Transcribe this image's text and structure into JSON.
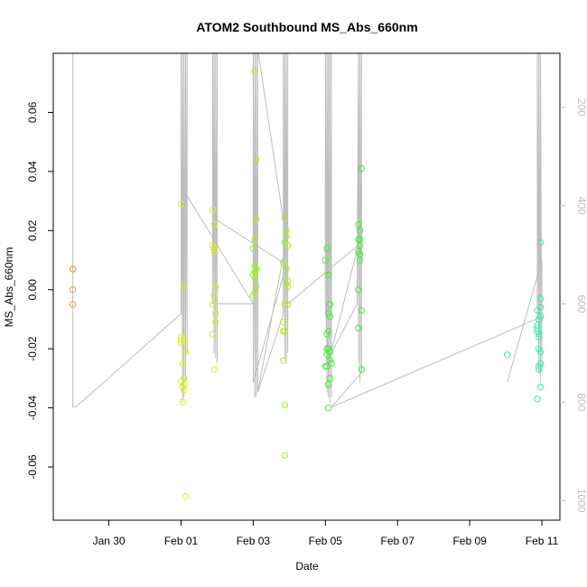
{
  "chart_data": {
    "type": "scatter",
    "title": "ATOM2 Southbound MS_Abs_660nm",
    "xlabel": "Date",
    "ylabel": "MS_Abs_660nm",
    "xlim": [
      "2017-01-28 11:00",
      "2017-02-11 12:00"
    ],
    "ylim": [
      -0.078,
      0.08
    ],
    "x_ticks": [
      "Jan 30",
      "Feb 01",
      "Feb 03",
      "Feb 05",
      "Feb 07",
      "Feb 09",
      "Feb 11"
    ],
    "x_tick_dates": [
      "2017-01-30",
      "2017-02-01",
      "2017-02-03",
      "2017-02-05",
      "2017-02-07",
      "2017-02-09",
      "2017-02-11"
    ],
    "y_ticks": [
      -0.06,
      -0.04,
      -0.02,
      0.0,
      0.02,
      0.04,
      0.06
    ],
    "y_tick_labels": [
      "-0.06",
      "-0.04",
      "-0.02",
      "0.00",
      "0.02",
      "0.04",
      "0.06"
    ],
    "right_axis": {
      "label": "",
      "ticks": [
        200,
        400,
        600,
        800,
        1000
      ],
      "tick_labels": [
        "200",
        "400",
        "600",
        "800",
        "1000"
      ],
      "range_top_to_bottom": [
        90,
        1040
      ],
      "color": "#bdbdbd"
    },
    "grid": false,
    "legend": "none",
    "series": [
      {
        "color": "#e8a33a",
        "points": [
          [
            "2017-01-29 00:00",
            0.007
          ],
          [
            "2017-01-29 00:00",
            0.007
          ],
          [
            "2017-01-29 00:00",
            0.0
          ],
          [
            "2017-01-29 00:00",
            -0.005
          ]
        ]
      },
      {
        "color": "#ddee22",
        "points": [
          [
            "2017-02-01 00:00",
            0.029
          ],
          [
            "2017-02-01 00:00",
            -0.016
          ],
          [
            "2017-02-01 00:00",
            -0.017
          ],
          [
            "2017-02-01 00:00",
            -0.018
          ],
          [
            "2017-02-01 01:00",
            -0.025
          ],
          [
            "2017-02-01 00:00",
            -0.031
          ],
          [
            "2017-02-01 01:00",
            -0.033
          ],
          [
            "2017-02-01 02:00",
            -0.03
          ],
          [
            "2017-02-01 02:00",
            -0.034
          ],
          [
            "2017-02-01 02:00",
            -0.032
          ],
          [
            "2017-02-01 01:00",
            -0.038
          ],
          [
            "2017-02-01 03:00",
            -0.07
          ],
          [
            "2017-02-01 02:00",
            0.001
          ],
          [
            "2017-02-01 02:00",
            -0.017
          ],
          [
            "2017-02-01 03:00",
            -0.021
          ],
          [
            "2017-02-01 21:00",
            0.027
          ],
          [
            "2017-02-01 22:00",
            0.022
          ],
          [
            "2017-02-01 21:00",
            0.015
          ],
          [
            "2017-02-01 22:00",
            0.014
          ],
          [
            "2017-02-01 22:00",
            0.013
          ],
          [
            "2017-02-01 23:00",
            0.001
          ],
          [
            "2017-02-01 22:00",
            -0.002
          ],
          [
            "2017-02-01 21:00",
            -0.005
          ],
          [
            "2017-02-01 23:00",
            -0.008
          ],
          [
            "2017-02-01 23:00",
            -0.011
          ],
          [
            "2017-02-01 21:00",
            -0.015
          ],
          [
            "2017-02-01 22:00",
            -0.027
          ]
        ]
      },
      {
        "color": "#a8ee22",
        "points": [
          [
            "2017-02-03 01:00",
            0.074
          ],
          [
            "2017-02-03 02:00",
            0.044
          ],
          [
            "2017-02-03 02:00",
            0.024
          ],
          [
            "2017-02-03 01:00",
            0.017
          ],
          [
            "2017-02-03 00:00",
            0.014
          ],
          [
            "2017-02-03 01:00",
            0.008
          ],
          [
            "2017-02-03 02:00",
            0.007
          ],
          [
            "2017-02-03 01:00",
            0.006
          ],
          [
            "2017-02-03 00:00",
            0.005
          ],
          [
            "2017-02-03 01:00",
            0.004
          ],
          [
            "2017-02-03 02:00",
            0.001
          ],
          [
            "2017-02-03 01:00",
            -0.001
          ],
          [
            "2017-02-03 00:00",
            -0.002
          ],
          [
            "2017-02-03 02:00",
            0.007
          ],
          [
            "2017-02-03 21:00",
            0.024
          ],
          [
            "2017-02-03 22:00",
            0.02
          ],
          [
            "2017-02-03 22:00",
            0.018
          ],
          [
            "2017-02-03 21:00",
            0.016
          ],
          [
            "2017-02-03 23:00",
            0.015
          ],
          [
            "2017-02-03 20:00",
            0.009
          ],
          [
            "2017-02-03 22:00",
            0.007
          ],
          [
            "2017-02-03 23:00",
            0.003
          ],
          [
            "2017-02-03 22:00",
            0.002
          ],
          [
            "2017-02-03 23:00",
            0.001
          ],
          [
            "2017-02-03 21:00",
            -0.005
          ],
          [
            "2017-02-03 23:00",
            -0.005
          ],
          [
            "2017-02-03 20:00",
            -0.011
          ],
          [
            "2017-02-03 20:00",
            -0.014
          ],
          [
            "2017-02-03 21:00",
            -0.014
          ],
          [
            "2017-02-03 20:00",
            -0.024
          ],
          [
            "2017-02-03 21:00",
            -0.039
          ],
          [
            "2017-02-03 21:00",
            -0.056
          ]
        ]
      },
      {
        "color": "#44ee33",
        "points": [
          [
            "2017-02-05 01:00",
            0.014
          ],
          [
            "2017-02-05 00:00",
            0.01
          ],
          [
            "2017-02-05 02:00",
            0.005
          ],
          [
            "2017-02-05 03:00",
            -0.005
          ],
          [
            "2017-02-05 02:00",
            -0.008
          ],
          [
            "2017-02-05 03:00",
            -0.009
          ],
          [
            "2017-02-05 02:00",
            -0.014
          ],
          [
            "2017-02-05 01:00",
            -0.015
          ],
          [
            "2017-02-05 01:00",
            -0.02
          ],
          [
            "2017-02-05 02:00",
            -0.02
          ],
          [
            "2017-02-05 03:00",
            -0.021
          ],
          [
            "2017-02-05 01:00",
            -0.022
          ],
          [
            "2017-02-05 03:00",
            -0.024
          ],
          [
            "2017-02-05 04:00",
            -0.025
          ],
          [
            "2017-02-05 00:00",
            -0.026
          ],
          [
            "2017-02-05 01:00",
            -0.026
          ],
          [
            "2017-02-05 03:00",
            -0.03
          ],
          [
            "2017-02-05 02:00",
            -0.032
          ],
          [
            "2017-02-05 02:00",
            -0.04
          ],
          [
            "2017-02-05 22:00",
            0.022
          ],
          [
            "2017-02-05 23:00",
            0.02
          ],
          [
            "2017-02-05 22:00",
            0.017
          ],
          [
            "2017-02-05 23:00",
            0.017
          ],
          [
            "2017-02-05 23:00",
            0.015
          ],
          [
            "2017-02-05 22:00",
            0.013
          ],
          [
            "2017-02-05 23:00",
            0.012
          ],
          [
            "2017-02-05 23:00",
            0.01
          ],
          [
            "2017-02-05 22:00",
            0.0
          ],
          [
            "2017-02-06 00:00",
            -0.007
          ],
          [
            "2017-02-05 22:00",
            -0.013
          ],
          [
            "2017-02-06 00:00",
            -0.027
          ],
          [
            "2017-02-06 00:00",
            0.041
          ]
        ]
      },
      {
        "color": "#33eeaa",
        "points": [
          [
            "2017-02-10 01:00",
            -0.022
          ],
          [
            "2017-02-10 21:00",
            -0.007
          ],
          [
            "2017-02-10 22:00",
            -0.01
          ],
          [
            "2017-02-10 21:00",
            -0.012
          ],
          [
            "2017-02-10 21:00",
            -0.013
          ],
          [
            "2017-02-10 21:00",
            -0.014
          ],
          [
            "2017-02-10 22:00",
            -0.015
          ],
          [
            "2017-02-10 22:00",
            -0.016
          ],
          [
            "2017-02-10 22:00",
            -0.02
          ],
          [
            "2017-02-10 23:00",
            -0.021
          ],
          [
            "2017-02-10 23:00",
            -0.025
          ],
          [
            "2017-02-10 22:00",
            -0.026
          ],
          [
            "2017-02-10 22:00",
            -0.027
          ],
          [
            "2017-02-10 23:00",
            -0.033
          ],
          [
            "2017-02-10 21:00",
            -0.037
          ],
          [
            "2017-02-10 23:00",
            -0.003
          ],
          [
            "2017-02-10 23:00",
            -0.006
          ],
          [
            "2017-02-10 23:00",
            -0.009
          ],
          [
            "2017-02-10 23:00",
            0.016
          ]
        ]
      }
    ],
    "track": {
      "color": "#bdbdbd",
      "axis": "right",
      "points": [
        [
          "2017-01-29 00:00",
          0
        ],
        [
          "2017-01-29 00:00",
          810
        ],
        [
          "2017-01-29 02:00",
          810
        ],
        [
          "2017-02-01 00:00",
          620
        ],
        [
          "2017-02-01 00:00",
          0
        ],
        [
          "2017-02-01 01:00",
          800
        ],
        [
          "2017-02-01 01:00",
          0
        ],
        [
          "2017-02-01 02:00",
          790
        ],
        [
          "2017-02-01 02:00",
          0
        ],
        [
          "2017-02-01 03:00",
          760
        ],
        [
          "2017-02-01 03:00",
          0
        ],
        [
          "2017-02-01 04:00",
          700
        ],
        [
          "2017-02-01 04:00",
          0
        ],
        [
          "2017-02-01 04:00",
          380
        ],
        [
          "2017-02-03 00:00",
          600
        ],
        [
          "2017-02-01 21:00",
          600
        ],
        [
          "2017-02-01 21:00",
          0
        ],
        [
          "2017-02-01 22:00",
          700
        ],
        [
          "2017-02-01 22:00",
          0
        ],
        [
          "2017-02-01 23:00",
          710
        ],
        [
          "2017-02-01 23:00",
          0
        ],
        [
          "2017-02-02 00:00",
          720
        ],
        [
          "2017-02-02 00:00",
          0
        ],
        [
          "2017-02-02 00:00",
          430
        ],
        [
          "2017-02-03 22:00",
          520
        ],
        [
          "2017-02-03 00:00",
          760
        ],
        [
          "2017-02-03 00:00",
          0
        ],
        [
          "2017-02-03 01:00",
          790
        ],
        [
          "2017-02-03 01:00",
          0
        ],
        [
          "2017-02-03 02:00",
          790
        ],
        [
          "2017-02-03 02:00",
          0
        ],
        [
          "2017-02-03 03:00",
          780
        ],
        [
          "2017-02-03 03:00",
          0
        ],
        [
          "2017-02-03 22:00",
          470
        ],
        [
          "2017-02-03 03:00",
          780
        ],
        [
          "2017-02-03 20:00",
          620
        ],
        [
          "2017-02-03 20:00",
          0
        ],
        [
          "2017-02-03 21:00",
          710
        ],
        [
          "2017-02-03 21:00",
          0
        ],
        [
          "2017-02-03 22:00",
          720
        ],
        [
          "2017-02-03 22:00",
          0
        ],
        [
          "2017-02-03 23:00",
          700
        ],
        [
          "2017-02-03 23:00",
          0
        ],
        [
          "2017-02-03 23:00",
          600
        ],
        [
          "2017-02-05 22:00",
          480
        ],
        [
          "2017-02-05 02:00",
          720
        ],
        [
          "2017-02-05 00:00",
          600
        ],
        [
          "2017-02-05 00:00",
          0
        ],
        [
          "2017-02-05 01:00",
          780
        ],
        [
          "2017-02-05 01:00",
          0
        ],
        [
          "2017-02-05 02:00",
          790
        ],
        [
          "2017-02-05 02:00",
          0
        ],
        [
          "2017-02-05 03:00",
          800
        ],
        [
          "2017-02-05 03:00",
          0
        ],
        [
          "2017-02-05 04:00",
          790
        ],
        [
          "2017-02-05 04:00",
          0
        ],
        [
          "2017-02-05 04:00",
          700
        ],
        [
          "2017-02-05 21:00",
          600
        ],
        [
          "2017-02-05 22:00",
          0
        ],
        [
          "2017-02-05 22:00",
          720
        ],
        [
          "2017-02-05 23:00",
          0
        ],
        [
          "2017-02-05 23:00",
          760
        ],
        [
          "2017-02-06 00:00",
          0
        ],
        [
          "2017-02-06 00:00",
          740
        ],
        [
          "2017-02-05 04:00",
          810
        ],
        [
          "2017-02-10 21:00",
          630
        ],
        [
          "2017-02-10 21:00",
          0
        ],
        [
          "2017-02-10 22:00",
          740
        ],
        [
          "2017-02-10 22:00",
          0
        ],
        [
          "2017-02-10 23:00",
          760
        ],
        [
          "2017-02-10 23:00",
          0
        ],
        [
          "2017-02-11 00:00",
          740
        ],
        [
          "2017-02-11 00:00",
          510
        ],
        [
          "2017-02-10 01:00",
          760
        ]
      ]
    }
  }
}
